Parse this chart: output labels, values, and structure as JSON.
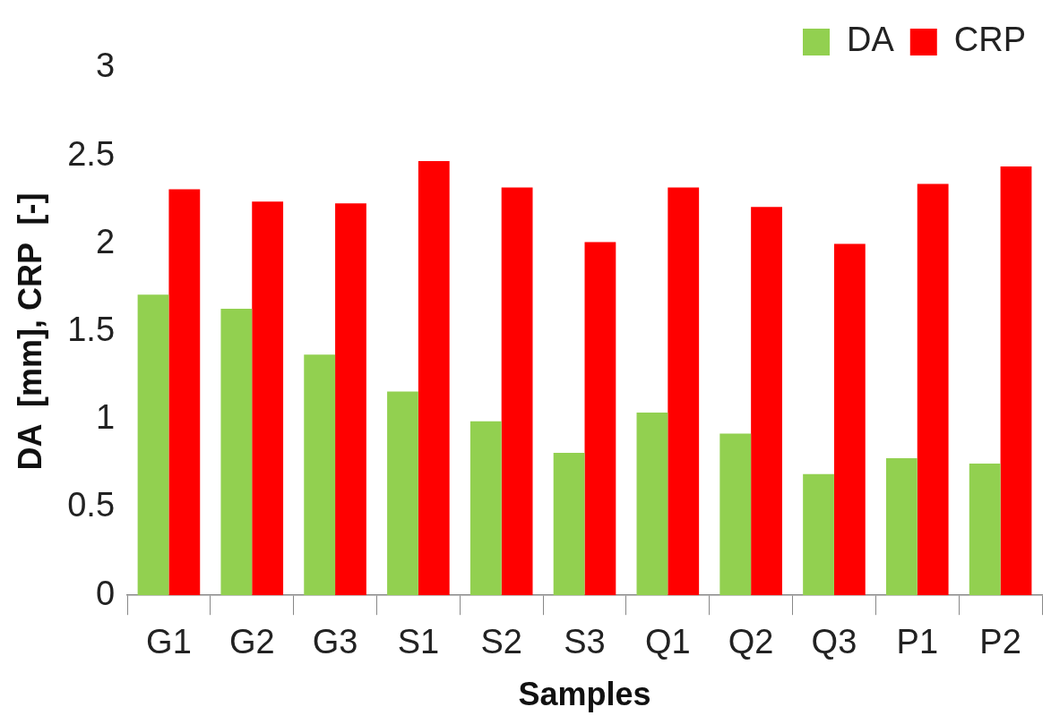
{
  "chart_data": {
    "type": "bar",
    "xlabel": "Samples",
    "ylabel": "DA  [mm], CRP  [-]",
    "categories": [
      "G1",
      "G2",
      "G3",
      "S1",
      "S2",
      "S3",
      "Q1",
      "Q2",
      "Q3",
      "P1",
      "P2"
    ],
    "series": [
      {
        "name": "DA",
        "color": "#92d050",
        "values": [
          1.71,
          1.63,
          1.37,
          1.16,
          0.99,
          0.81,
          1.04,
          0.92,
          0.69,
          0.78,
          0.75
        ]
      },
      {
        "name": "CRP",
        "color": "#ff0000",
        "values": [
          2.31,
          2.24,
          2.23,
          2.47,
          2.32,
          2.01,
          2.32,
          2.21,
          2.0,
          2.34,
          2.44
        ]
      }
    ],
    "ylim": [
      0,
      3
    ],
    "yticks": [
      0,
      0.5,
      1,
      1.5,
      2,
      2.5,
      3
    ],
    "grid": false,
    "legend": "top right"
  }
}
